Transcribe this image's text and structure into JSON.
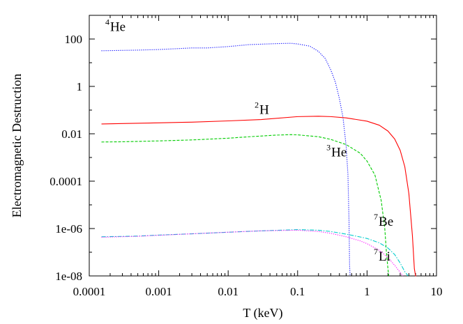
{
  "chart_data": {
    "type": "line",
    "title": "",
    "xlabel": "T (keV)",
    "ylabel": "Electromagnetic Destruction",
    "xscale": "log",
    "yscale": "log",
    "xlim": [
      0.0001,
      10
    ],
    "ylim": [
      1e-08,
      1000
    ],
    "grid": false,
    "x_ticks": [
      {
        "value": 0.0001,
        "label": "0.0001"
      },
      {
        "value": 0.001,
        "label": "0.001"
      },
      {
        "value": 0.01,
        "label": "0.01"
      },
      {
        "value": 0.1,
        "label": "0.1"
      },
      {
        "value": 1,
        "label": "1"
      },
      {
        "value": 10,
        "label": "10"
      }
    ],
    "y_ticks": [
      {
        "value": 1e-08,
        "label": "1e-08"
      },
      {
        "value": 1e-06,
        "label": "1e-06"
      },
      {
        "value": 0.0001,
        "label": "0.0001"
      },
      {
        "value": 0.01,
        "label": "0.01"
      },
      {
        "value": 1,
        "label": "1"
      },
      {
        "value": 100,
        "label": "100"
      }
    ],
    "series": [
      {
        "id": "he4",
        "color": "#0000ff",
        "dash": "dotted",
        "x": [
          0.00015,
          0.0005,
          0.001,
          0.003,
          0.005,
          0.01,
          0.02,
          0.05,
          0.08,
          0.1,
          0.15,
          0.2,
          0.25,
          0.3,
          0.35,
          0.4,
          0.45,
          0.5,
          0.53,
          0.55,
          0.56,
          0.57
        ],
        "y": [
          32,
          34,
          36,
          42,
          42,
          48,
          58,
          64,
          66,
          62,
          50,
          30,
          15,
          5,
          1.5,
          0.3,
          0.05,
          0.003,
          0.0002,
          2e-06,
          3e-08,
          1e-08
        ]
      },
      {
        "id": "h2",
        "color": "#ff0000",
        "dash": "solid",
        "x": [
          0.00015,
          0.0003,
          0.001,
          0.003,
          0.01,
          0.03,
          0.1,
          0.2,
          0.3,
          0.5,
          1.0,
          1.5,
          2.0,
          2.5,
          3.0,
          3.5,
          4.0,
          4.5,
          4.8,
          5.0,
          5.1
        ],
        "y": [
          0.026,
          0.027,
          0.029,
          0.031,
          0.035,
          0.04,
          0.053,
          0.055,
          0.053,
          0.047,
          0.034,
          0.023,
          0.013,
          0.006,
          0.002,
          0.0004,
          3e-05,
          5e-07,
          2e-08,
          1e-08,
          1e-08
        ]
      },
      {
        "id": "he3",
        "color": "#00cc00",
        "dash": "dashed",
        "x": [
          0.00015,
          0.0003,
          0.001,
          0.003,
          0.01,
          0.02,
          0.05,
          0.08,
          0.1,
          0.2,
          0.3,
          0.5,
          0.8,
          1.0,
          1.3,
          1.6,
          1.8,
          1.9,
          2.0,
          2.05
        ],
        "y": [
          0.0045,
          0.0046,
          0.005,
          0.0055,
          0.0065,
          0.0075,
          0.0088,
          0.0092,
          0.009,
          0.0075,
          0.0058,
          0.0035,
          0.0015,
          0.0007,
          0.00018,
          1.5e-05,
          1e-06,
          1e-07,
          2e-08,
          1e-08
        ]
      },
      {
        "id": "be7",
        "color": "#00cccc",
        "dash": "dash-dot",
        "x": [
          0.00015,
          0.0005,
          0.001,
          0.003,
          0.01,
          0.03,
          0.1,
          0.2,
          0.3,
          0.5,
          0.8,
          1.0,
          1.5,
          2.0,
          2.5,
          3.0,
          3.5,
          3.9
        ],
        "y": [
          4.5e-07,
          4.8e-07,
          5.3e-07,
          6e-07,
          7e-07,
          8e-07,
          9e-07,
          8.5e-07,
          7.5e-07,
          5.8e-07,
          4.4e-07,
          3.8e-07,
          2.5e-07,
          1.5e-07,
          8e-08,
          3.5e-08,
          1.5e-08,
          1e-08
        ]
      },
      {
        "id": "li7",
        "color": "#ff00ff",
        "dash": "dotted",
        "x": [
          0.00015,
          0.0005,
          0.001,
          0.003,
          0.01,
          0.03,
          0.1,
          0.2,
          0.3,
          0.5,
          0.8,
          1.0,
          1.5,
          2.0,
          2.5,
          3.0,
          3.3
        ],
        "y": [
          4.3e-07,
          4.7e-07,
          5.2e-07,
          6e-07,
          7e-07,
          8e-07,
          8.5e-07,
          7.5e-07,
          6.3e-07,
          4.5e-07,
          3e-07,
          2.3e-07,
          1.2e-07,
          6e-08,
          2.8e-08,
          1.4e-08,
          1e-08
        ]
      }
    ],
    "annotations": [
      {
        "id": "he4",
        "sup": "4",
        "main": "He",
        "x": 0.00017,
        "y": 220
      },
      {
        "id": "h2",
        "sup": "2",
        "main": "H",
        "x": 0.024,
        "y": 0.07
      },
      {
        "id": "he3",
        "sup": "3",
        "main": "He",
        "x": 0.26,
        "y": 0.0011
      },
      {
        "id": "be7",
        "sup": "7",
        "main": "Be",
        "x": 1.25,
        "y": 1.3e-06
      },
      {
        "id": "li7",
        "sup": "7",
        "main": "Li",
        "x": 1.25,
        "y": 4.5e-08
      }
    ]
  }
}
